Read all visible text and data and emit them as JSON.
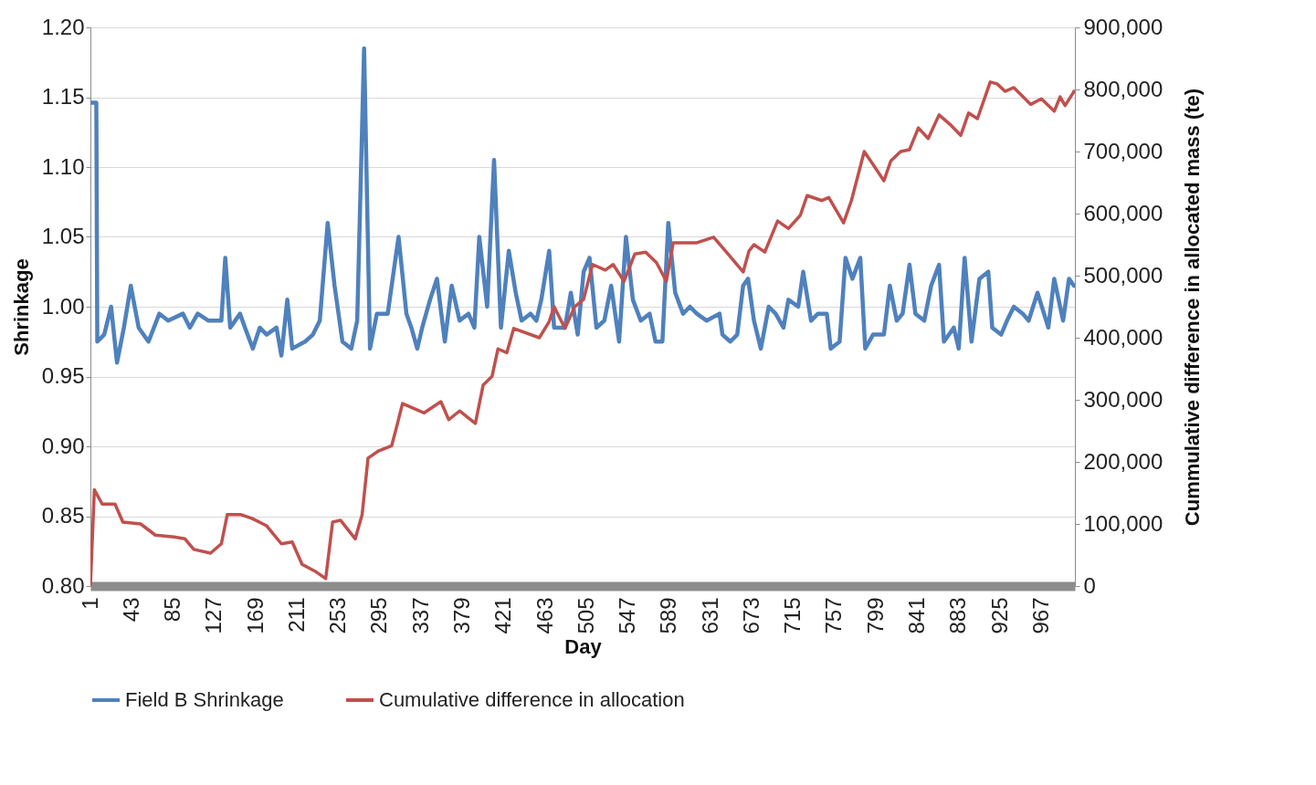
{
  "chart_data": {
    "type": "line",
    "xlabel": "Day",
    "ylabel": "Shrinkage",
    "y2label": "Cummulative difference in allocated mass (te)",
    "grid": "y",
    "legend": "bottom",
    "xlim": [
      1,
      1001
    ],
    "xticks": [
      1,
      43,
      85,
      127,
      169,
      211,
      253,
      295,
      337,
      379,
      421,
      463,
      505,
      547,
      589,
      631,
      673,
      715,
      757,
      799,
      841,
      883,
      925,
      967
    ],
    "ylim": [
      0.8,
      1.2
    ],
    "yticks": [
      {
        "value": 0.8,
        "label": "0.80"
      },
      {
        "value": 0.85,
        "label": "0.85"
      },
      {
        "value": 0.9,
        "label": "0.90"
      },
      {
        "value": 0.95,
        "label": "0.95"
      },
      {
        "value": 1.0,
        "label": "1.00"
      },
      {
        "value": 1.05,
        "label": "1.05"
      },
      {
        "value": 1.1,
        "label": "1.10"
      },
      {
        "value": 1.15,
        "label": "1.15"
      },
      {
        "value": 1.2,
        "label": "1.20"
      }
    ],
    "y2lim": [
      0,
      900000
    ],
    "y2ticks": [
      0,
      {
        "value": 100000,
        "label": "100,000"
      },
      {
        "value": 200000,
        "label": "200,000"
      },
      {
        "value": 300000,
        "label": "300,000"
      },
      {
        "value": 400000,
        "label": "400,000"
      },
      {
        "value": 500000,
        "label": "500,000"
      },
      {
        "value": 600000,
        "label": "600,000"
      },
      {
        "value": 700000,
        "label": "700,000"
      },
      {
        "value": 800000,
        "label": "800,000"
      },
      {
        "value": 900000,
        "label": "900,000"
      }
    ],
    "series": [
      {
        "name": "Field B Shrinkage",
        "color": "#4f81bd",
        "x": [
          1,
          7,
          8,
          15,
          22,
          28,
          35,
          42,
          50,
          60,
          71,
          80,
          95,
          102,
          110,
          121,
          134,
          138,
          143,
          153,
          158,
          166,
          173,
          180,
          190,
          195,
          201,
          206,
          219,
          227,
          234,
          242,
          249,
          257,
          266,
          272,
          279,
          285,
          292,
          303,
          314,
          322,
          327,
          333,
          338,
          346,
          353,
          361,
          368,
          376,
          385,
          391,
          396,
          404,
          411,
          418,
          426,
          433,
          439,
          448,
          454,
          459,
          467,
          472,
          483,
          489,
          496,
          502,
          508,
          515,
          523,
          530,
          538,
          545,
          552,
          560,
          569,
          575,
          582,
          588,
          595,
          603,
          610,
          617,
          627,
          640,
          643,
          651,
          658,
          664,
          669,
          675,
          682,
          690,
          697,
          705,
          710,
          720,
          725,
          733,
          740,
          749,
          753,
          762,
          768,
          775,
          783,
          788,
          796,
          807,
          813,
          820,
          826,
          833,
          839,
          848,
          855,
          863,
          868,
          878,
          883,
          889,
          896,
          904,
          913,
          917,
          926,
          932,
          939,
          948,
          954,
          963,
          974,
          980,
          989,
          995,
          1000
        ],
        "values": [
          1.146,
          1.146,
          0.975,
          0.98,
          1.0,
          0.96,
          0.985,
          1.015,
          0.985,
          0.975,
          0.995,
          0.99,
          0.995,
          0.985,
          0.995,
          0.99,
          0.99,
          1.035,
          0.985,
          0.995,
          0.985,
          0.97,
          0.985,
          0.98,
          0.985,
          0.965,
          1.005,
          0.97,
          0.975,
          0.98,
          0.99,
          1.06,
          1.015,
          0.975,
          0.97,
          0.99,
          1.185,
          0.97,
          0.995,
          0.995,
          1.05,
          0.995,
          0.985,
          0.97,
          0.985,
          1.005,
          1.02,
          0.975,
          1.015,
          0.99,
          0.995,
          0.985,
          1.05,
          1.0,
          1.105,
          0.985,
          1.04,
          1.01,
          0.99,
          0.995,
          0.99,
          1.005,
          1.04,
          0.985,
          0.985,
          1.01,
          0.98,
          1.025,
          1.035,
          0.985,
          0.99,
          1.015,
          0.975,
          1.05,
          1.005,
          0.99,
          0.995,
          0.975,
          0.975,
          1.06,
          1.01,
          0.995,
          1.0,
          0.995,
          0.99,
          0.995,
          0.98,
          0.975,
          0.98,
          1.015,
          1.02,
          0.99,
          0.97,
          1.0,
          0.995,
          0.985,
          1.005,
          1.0,
          1.025,
          0.99,
          0.995,
          0.995,
          0.97,
          0.975,
          1.035,
          1.02,
          1.035,
          0.97,
          0.98,
          0.98,
          1.015,
          0.99,
          0.995,
          1.03,
          0.995,
          0.99,
          1.015,
          1.03,
          0.975,
          0.985,
          0.97,
          1.035,
          0.975,
          1.02,
          1.025,
          0.985,
          0.98,
          0.99,
          1.0,
          0.995,
          0.99,
          1.01,
          0.985,
          1.02,
          0.99,
          1.02,
          1.015
        ]
      },
      {
        "name": "Cumulative difference in allocation",
        "color": "#c0504d",
        "axis": "y2",
        "x": [
          1,
          5,
          13,
          26,
          34,
          52,
          67,
          86,
          97,
          106,
          123,
          134,
          140,
          154,
          165,
          180,
          195,
          206,
          216,
          229,
          240,
          247,
          255,
          270,
          277,
          283,
          294,
          307,
          312,
          318,
          340,
          357,
          365,
          376,
          392,
          400,
          409,
          415,
          424,
          431,
          457,
          467,
          472,
          483,
          493,
          502,
          511,
          524,
          532,
          543,
          554,
          565,
          576,
          586,
          593,
          617,
          634,
          647,
          664,
          670,
          675,
          686,
          699,
          710,
          722,
          729,
          744,
          751,
          766,
          774,
          787,
          796,
          807,
          814,
          824,
          833,
          842,
          852,
          863,
          874,
          885,
          893,
          902,
          915,
          922,
          930,
          939,
          956,
          967,
          980,
          986,
          991,
          999,
          1000
        ],
        "values": [
          0,
          155000,
          132000,
          132000,
          103000,
          100000,
          82000,
          79000,
          76000,
          59000,
          53000,
          68000,
          115000,
          115000,
          109000,
          97000,
          68000,
          71000,
          35000,
          24000,
          12000,
          103000,
          106000,
          76000,
          115000,
          206000,
          218000,
          226000,
          256000,
          294000,
          279000,
          297000,
          268000,
          282000,
          262000,
          324000,
          338000,
          382000,
          376000,
          415000,
          400000,
          426000,
          450000,
          415000,
          450000,
          462000,
          518000,
          509000,
          518000,
          491000,
          535000,
          538000,
          521000,
          491000,
          553000,
          553000,
          562000,
          538000,
          506000,
          540000,
          550000,
          538000,
          588000,
          576000,
          597000,
          629000,
          621000,
          626000,
          585000,
          621000,
          700000,
          679000,
          653000,
          685000,
          700000,
          703000,
          738000,
          721000,
          759000,
          744000,
          726000,
          762000,
          753000,
          812000,
          809000,
          797000,
          803000,
          776000,
          785000,
          765000,
          788000,
          774000,
          794000,
          797000
        ]
      }
    ]
  }
}
